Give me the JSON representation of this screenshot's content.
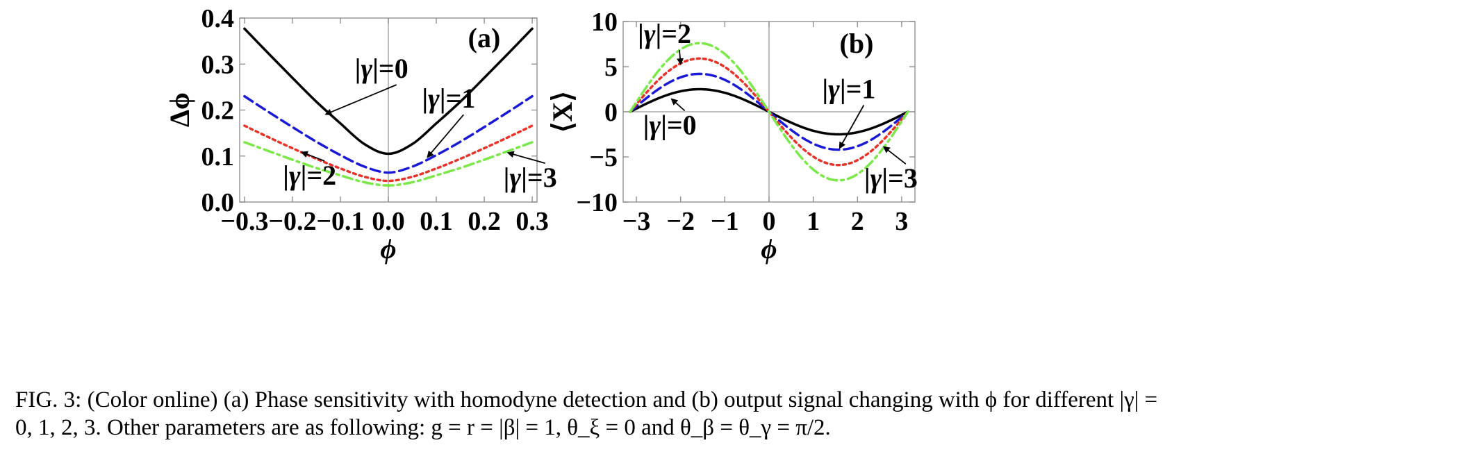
{
  "chart_data": [
    {
      "type": "line",
      "panel_label": "(a)",
      "xlabel": "ϕ",
      "ylabel": "Δϕ",
      "xlim": [
        -0.31,
        0.31
      ],
      "ylim": [
        0.0,
        0.4
      ],
      "xticks": [
        -0.3,
        -0.2,
        -0.1,
        0.0,
        0.1,
        0.2,
        0.3
      ],
      "xtick_labels": [
        "−0.3",
        "−0.2",
        "−0.1",
        "0.0",
        "0.1",
        "0.2",
        "0.3"
      ],
      "yticks": [
        0.0,
        0.1,
        0.2,
        0.3,
        0.4
      ],
      "ytick_labels": [
        "0.0",
        "0.1",
        "0.2",
        "0.3",
        "0.4"
      ],
      "series": [
        {
          "name": "|γ|=0",
          "color": "#000000",
          "style": "solid",
          "x": [
            -0.3,
            -0.25,
            -0.2,
            -0.15,
            -0.1,
            -0.05,
            0.0,
            0.05,
            0.1,
            0.15,
            0.2,
            0.25,
            0.3
          ],
          "y": [
            0.377,
            0.323,
            0.27,
            0.218,
            0.171,
            0.126,
            0.105,
            0.126,
            0.171,
            0.218,
            0.27,
            0.323,
            0.377
          ]
        },
        {
          "name": "|γ|=1",
          "color": "#1a1ad6",
          "style": "dashed",
          "x": [
            -0.3,
            -0.25,
            -0.2,
            -0.15,
            -0.1,
            -0.05,
            0.0,
            0.05,
            0.1,
            0.15,
            0.2,
            0.25,
            0.3
          ],
          "y": [
            0.23,
            0.196,
            0.163,
            0.131,
            0.102,
            0.077,
            0.064,
            0.077,
            0.102,
            0.131,
            0.163,
            0.196,
            0.23
          ]
        },
        {
          "name": "|γ|=2",
          "color": "#e8332a",
          "style": "dotted",
          "x": [
            -0.3,
            -0.25,
            -0.2,
            -0.15,
            -0.1,
            -0.05,
            0.0,
            0.05,
            0.1,
            0.15,
            0.2,
            0.25,
            0.3
          ],
          "y": [
            0.166,
            0.141,
            0.117,
            0.094,
            0.073,
            0.055,
            0.046,
            0.055,
            0.073,
            0.094,
            0.117,
            0.141,
            0.166
          ]
        },
        {
          "name": "|γ|=3",
          "color": "#7be84a",
          "style": "dashdot",
          "x": [
            -0.3,
            -0.25,
            -0.2,
            -0.15,
            -0.1,
            -0.05,
            0.0,
            0.05,
            0.1,
            0.15,
            0.2,
            0.25,
            0.3
          ],
          "y": [
            0.13,
            0.111,
            0.092,
            0.074,
            0.058,
            0.043,
            0.036,
            0.043,
            0.058,
            0.074,
            0.092,
            0.111,
            0.13
          ]
        }
      ],
      "annotations": [
        {
          "text": "|γ|=0",
          "x": -0.07,
          "y": 0.27,
          "arrow_to": [
            -0.13,
            0.191
          ]
        },
        {
          "text": "|γ|=1",
          "x": 0.07,
          "y": 0.205,
          "arrow_to": [
            0.082,
            0.098
          ]
        },
        {
          "text": "|γ|=2",
          "x": -0.22,
          "y": 0.038,
          "arrow_to": [
            -0.18,
            0.108
          ]
        },
        {
          "text": "|γ|=3",
          "x": 0.24,
          "y": 0.033,
          "arrow_to": [
            0.25,
            0.107
          ]
        }
      ]
    },
    {
      "type": "line",
      "panel_label": "(b)",
      "xlabel": "ϕ",
      "ylabel": "⟨X⟩",
      "xlim": [
        -3.3,
        3.3
      ],
      "ylim": [
        -10,
        10
      ],
      "xticks": [
        -3,
        -2,
        -1,
        0,
        1,
        2,
        3
      ],
      "xtick_labels": [
        "−3",
        "−2",
        "−1",
        "0",
        "1",
        "2",
        "3"
      ],
      "yticks": [
        -10,
        -5,
        0,
        5,
        10
      ],
      "ytick_labels": [
        "−10",
        "−5",
        "0",
        "5",
        "10"
      ],
      "series": [
        {
          "name": "|γ|=0",
          "color": "#000000",
          "style": "solid",
          "form": "-A*sin(x)",
          "amplitude": 2.5
        },
        {
          "name": "|γ|=1",
          "color": "#1a1ad6",
          "style": "dashed",
          "form": "-A*sin(x)",
          "amplitude": 4.2
        },
        {
          "name": "|γ|=2",
          "color": "#e8332a",
          "style": "dotted",
          "form": "-A*sin(x)",
          "amplitude": 5.9
        },
        {
          "name": "|γ|=3",
          "color": "#7be84a",
          "style": "dashdot",
          "form": "-A*sin(x)",
          "amplitude": 7.6
        }
      ],
      "annotations": [
        {
          "text": "|γ|=2",
          "x": -2.97,
          "y": 7.6,
          "arrow_to": [
            -2.0,
            5.3
          ]
        },
        {
          "text": "|γ|=0",
          "x": -2.85,
          "y": -2.5,
          "arrow_to": [
            -2.2,
            1.4
          ]
        },
        {
          "text": "|γ|=1",
          "x": 1.2,
          "y": 1.5,
          "arrow_to": [
            1.6,
            -4.0
          ]
        },
        {
          "text": "|γ|=3",
          "x": 2.15,
          "y": -8.4,
          "arrow_to": [
            2.6,
            -3.9
          ]
        }
      ]
    }
  ],
  "caption": {
    "line1": "FIG. 3: (Color online) (a) Phase sensitivity with homodyne detection and (b) output signal changing with ϕ for different |γ| =",
    "line2": "0, 1, 2, 3. Other parameters are as following: g = r = |β| = 1, θ_ξ = 0 and θ_β = θ_γ = π/2."
  }
}
